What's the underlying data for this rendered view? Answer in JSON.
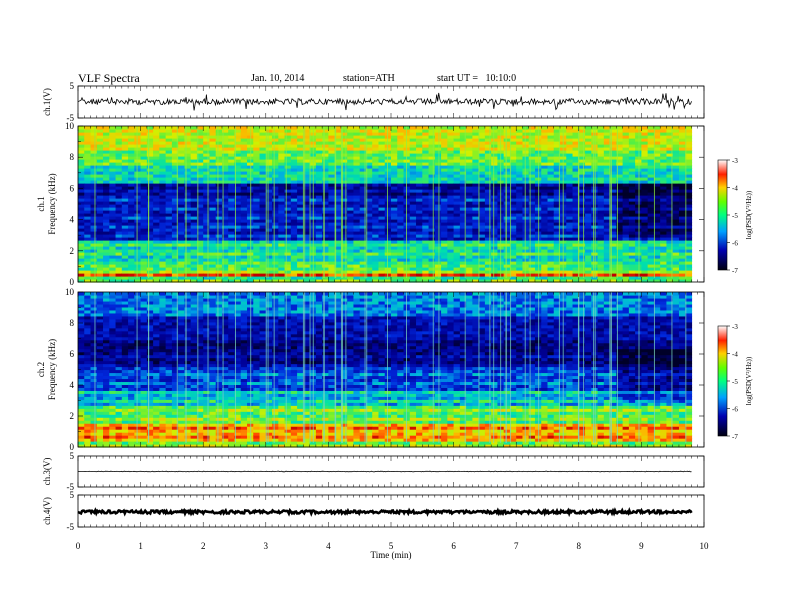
{
  "header": {
    "title": "VLF Spectra",
    "date": "Jan. 10, 2014",
    "station": "station=ATH",
    "start": "start UT =   10:10:0"
  },
  "chart_data": [
    {
      "type": "line",
      "panel": "ch1-waveform",
      "ylabel": "ch.1(V)",
      "ylim": [
        -5,
        5
      ],
      "yticks": [
        "5",
        "-5"
      ],
      "baseline_v": 0.1,
      "x_range_min": [
        0,
        9.8
      ]
    },
    {
      "type": "heatmap",
      "panel": "ch1-spectrogram",
      "ylabel_channel": "ch.1",
      "ylabel": "Frequency (kHz)",
      "ylim": [
        0,
        10
      ],
      "yticks": [
        "0",
        "2",
        "4",
        "6",
        "8",
        "10"
      ],
      "colorbar": {
        "label": "log(PSD(V²/Hz))",
        "range": [
          -7,
          -3
        ],
        "ticks": [
          "-3",
          "-4",
          "-5",
          "-6",
          "-7"
        ]
      }
    },
    {
      "type": "heatmap",
      "panel": "ch2-spectrogram",
      "ylabel_channel": "ch.2",
      "ylabel": "Frequency (kHz)",
      "ylim": [
        0,
        10
      ],
      "yticks": [
        "0",
        "2",
        "4",
        "6",
        "8",
        "10"
      ],
      "colorbar": {
        "label": "log(PSD(V²/Hz))",
        "range": [
          -7,
          -3
        ],
        "ticks": [
          "-3",
          "-4",
          "-5",
          "-6",
          "-7"
        ]
      }
    },
    {
      "type": "line",
      "panel": "ch3-waveform",
      "ylabel": "ch.3(V)",
      "ylim": [
        -5,
        5
      ],
      "yticks": [
        "5",
        "-5"
      ],
      "baseline_v": 0.0
    },
    {
      "type": "line",
      "panel": "ch4-waveform",
      "ylabel": "ch.4(V)",
      "ylim": [
        -5,
        5
      ],
      "yticks": [
        "5",
        "-5"
      ],
      "baseline_v": -0.3
    },
    {
      "type": "axis",
      "xlabel": "Time (min)",
      "xlim": [
        0,
        10
      ],
      "xticks": [
        "0",
        "1",
        "2",
        "3",
        "4",
        "5",
        "6",
        "7",
        "8",
        "9",
        "10"
      ]
    }
  ],
  "colors": {
    "accent": "#000000",
    "colormap": [
      "#00002a",
      "#00008c",
      "#0030d0",
      "#00a0e0",
      "#00e0a0",
      "#40f040",
      "#d0f000",
      "#ffc000",
      "#ff4000",
      "#c00000"
    ]
  }
}
